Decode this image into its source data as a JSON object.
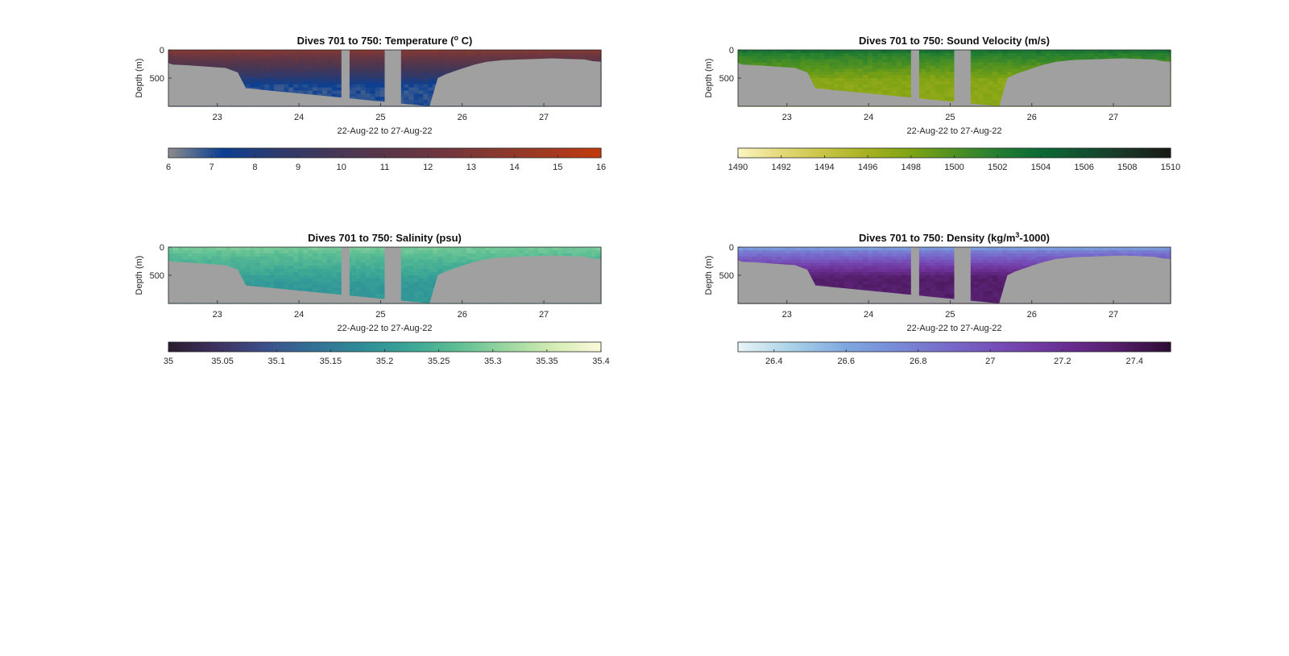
{
  "figure": {
    "background": "#ffffff",
    "nodata_color": "#a0a0a0"
  },
  "chart_data": [
    {
      "type": "heatmap",
      "title_parts": [
        {
          "text": "Dives 701 to 750: Temperature ("
        },
        {
          "text": "o",
          "sup": true
        },
        {
          "text": " C)"
        }
      ],
      "xlabel": "22-Aug-22 to 27-Aug-22",
      "ylabel": "Depth (m)",
      "xlim": [
        22.4,
        27.7
      ],
      "ylim": [
        1000,
        0
      ],
      "x_ticks": [
        23,
        24,
        25,
        26,
        27
      ],
      "x_tick_labels": [
        "23",
        "24",
        "25",
        "26",
        "27"
      ],
      "y_ticks": [
        0,
        500
      ],
      "y_tick_labels": [
        "0",
        "500"
      ],
      "colorbar": {
        "range": [
          6,
          16
        ],
        "ticks": [
          6,
          7,
          8,
          9,
          10,
          11,
          12,
          13,
          14,
          15,
          16
        ],
        "tick_labels": [
          "6",
          "7",
          "8",
          "9",
          "10",
          "11",
          "12",
          "13",
          "14",
          "15",
          "16"
        ],
        "colors": [
          "#8c8c8c",
          "#0b3f92",
          "#2c3a6e",
          "#433758",
          "#5a3648",
          "#6e3640",
          "#86392f",
          "#a03a22",
          "#c23a0c"
        ]
      },
      "field": {
        "surface_value": 13.5,
        "surface_depth": 150,
        "deep_value": 7.0
      },
      "data_gaps": [
        [
          24.52,
          24.62
        ],
        [
          25.05,
          25.25
        ]
      ],
      "bottom_profile": {
        "x": [
          22.4,
          22.45,
          22.6,
          22.8,
          23.0,
          23.1,
          23.25,
          23.35,
          25.6,
          25.7,
          25.8,
          25.9,
          26.0,
          26.15,
          26.3,
          26.5,
          26.7,
          26.9,
          27.1,
          27.3,
          27.5,
          27.6,
          27.7
        ],
        "depth": [
          230,
          260,
          270,
          290,
          310,
          320,
          400,
          680,
          1000,
          500,
          430,
          380,
          330,
          260,
          210,
          180,
          170,
          160,
          150,
          160,
          170,
          200,
          210
        ]
      }
    },
    {
      "type": "heatmap",
      "title_parts": [
        {
          "text": "Dives 701 to 750: Sound Velocity (m/s)"
        }
      ],
      "xlabel": "22-Aug-22 to 27-Aug-22",
      "ylabel": "Depth (m)",
      "xlim": [
        22.4,
        27.7
      ],
      "ylim": [
        1000,
        0
      ],
      "x_ticks": [
        23,
        24,
        25,
        26,
        27
      ],
      "x_tick_labels": [
        "23",
        "24",
        "25",
        "26",
        "27"
      ],
      "y_ticks": [
        0,
        500
      ],
      "y_tick_labels": [
        "0",
        "500"
      ],
      "colorbar": {
        "range": [
          1490,
          1510
        ],
        "ticks": [
          1490,
          1492,
          1494,
          1496,
          1498,
          1500,
          1502,
          1504,
          1506,
          1508,
          1510
        ],
        "tick_labels": [
          "1490",
          "1492",
          "1494",
          "1496",
          "1498",
          "1500",
          "1502",
          "1504",
          "1506",
          "1508",
          "1510"
        ],
        "colors": [
          "#fbf6c1",
          "#e4d879",
          "#c8c446",
          "#a6b121",
          "#7fa313",
          "#4f9122",
          "#237e31",
          "#0b6934",
          "#125030",
          "#1a3426",
          "#161a14"
        ]
      },
      "field": {
        "surface_value": 1504,
        "surface_depth": 50,
        "deep_value": 1497.5
      },
      "data_gaps": [
        [
          24.52,
          24.62
        ],
        [
          25.05,
          25.25
        ]
      ],
      "bottom_profile": {
        "x": [
          22.4,
          22.45,
          22.6,
          22.8,
          23.0,
          23.1,
          23.25,
          23.35,
          25.6,
          25.7,
          25.8,
          25.9,
          26.0,
          26.15,
          26.3,
          26.5,
          26.7,
          26.9,
          27.1,
          27.3,
          27.5,
          27.6,
          27.7
        ],
        "depth": [
          230,
          260,
          270,
          290,
          310,
          320,
          400,
          680,
          1000,
          500,
          430,
          380,
          330,
          260,
          210,
          180,
          170,
          160,
          150,
          160,
          170,
          200,
          210
        ]
      }
    },
    {
      "type": "heatmap",
      "title_parts": [
        {
          "text": "Dives 701 to 750: Salinity (psu)"
        }
      ],
      "xlabel": "22-Aug-22 to 27-Aug-22",
      "ylabel": "Depth (m)",
      "xlim": [
        22.4,
        27.7
      ],
      "ylim": [
        1000,
        0
      ],
      "x_ticks": [
        23,
        24,
        25,
        26,
        27
      ],
      "x_tick_labels": [
        "23",
        "24",
        "25",
        "26",
        "27"
      ],
      "y_ticks": [
        0,
        500
      ],
      "y_tick_labels": [
        "0",
        "500"
      ],
      "colorbar": {
        "range": [
          35,
          35.4
        ],
        "ticks": [
          35,
          35.05,
          35.1,
          35.15,
          35.2,
          35.25,
          35.3,
          35.35,
          35.4
        ],
        "tick_labels": [
          "35",
          "35.05",
          "35.1",
          "35.15",
          "35.2",
          "35.25",
          "35.3",
          "35.35",
          "35.4"
        ],
        "colors": [
          "#2a1c2e",
          "#3d3160",
          "#3c4f8a",
          "#336f96",
          "#2e8c98",
          "#3aa596",
          "#5cbe93",
          "#98d6a0",
          "#d4ecb3",
          "#fbfadc"
        ]
      },
      "field": {
        "surface_value": 35.29,
        "surface_depth": 150,
        "deep_value": 35.2
      },
      "data_gaps": [
        [
          24.52,
          24.62
        ],
        [
          25.05,
          25.25
        ]
      ],
      "bottom_profile": {
        "x": [
          22.4,
          22.45,
          22.6,
          22.8,
          23.0,
          23.1,
          23.25,
          23.35,
          25.6,
          25.7,
          25.8,
          25.9,
          26.0,
          26.15,
          26.3,
          26.5,
          26.7,
          26.9,
          27.1,
          27.3,
          27.5,
          27.6,
          27.7
        ],
        "depth": [
          230,
          260,
          270,
          290,
          310,
          320,
          400,
          680,
          1000,
          500,
          430,
          380,
          330,
          260,
          210,
          180,
          170,
          160,
          150,
          160,
          170,
          200,
          210
        ]
      }
    },
    {
      "type": "heatmap",
      "title_parts": [
        {
          "text": "Dives 701 to 750: Density (kg/m"
        },
        {
          "text": "3",
          "sup": true
        },
        {
          "text": "-1000)"
        }
      ],
      "xlabel": "22-Aug-22 to 27-Aug-22",
      "ylabel": "Depth (m)",
      "xlim": [
        22.4,
        27.7
      ],
      "ylim": [
        1000,
        0
      ],
      "x_ticks": [
        23,
        24,
        25,
        26,
        27
      ],
      "x_tick_labels": [
        "23",
        "24",
        "25",
        "26",
        "27"
      ],
      "y_ticks": [
        0,
        500
      ],
      "y_tick_labels": [
        "0",
        "500"
      ],
      "colorbar": {
        "range": [
          26.3,
          27.5
        ],
        "ticks": [
          26.4,
          26.6,
          26.8,
          27,
          27.2,
          27.4
        ],
        "tick_labels": [
          "26.4",
          "26.6",
          "26.8",
          "27",
          "27.2",
          "27.4"
        ],
        "colors": [
          "#e9f4f6",
          "#a9d1e7",
          "#7ea7e0",
          "#7889d6",
          "#7766c9",
          "#7548b2",
          "#6b2f94",
          "#551f6c",
          "#2d0d32"
        ]
      },
      "field": {
        "surface_value": 26.5,
        "surface_depth": 40,
        "deep_value": 27.35
      },
      "data_gaps": [
        [
          24.52,
          24.62
        ],
        [
          25.05,
          25.25
        ]
      ],
      "bottom_profile": {
        "x": [
          22.4,
          22.45,
          22.6,
          22.8,
          23.0,
          23.1,
          23.25,
          23.35,
          25.6,
          25.7,
          25.8,
          25.9,
          26.0,
          26.15,
          26.3,
          26.5,
          26.7,
          26.9,
          27.1,
          27.3,
          27.5,
          27.6,
          27.7
        ],
        "depth": [
          230,
          260,
          270,
          290,
          310,
          320,
          400,
          680,
          1000,
          500,
          430,
          380,
          330,
          260,
          210,
          180,
          170,
          160,
          150,
          160,
          170,
          200,
          210
        ]
      }
    }
  ]
}
